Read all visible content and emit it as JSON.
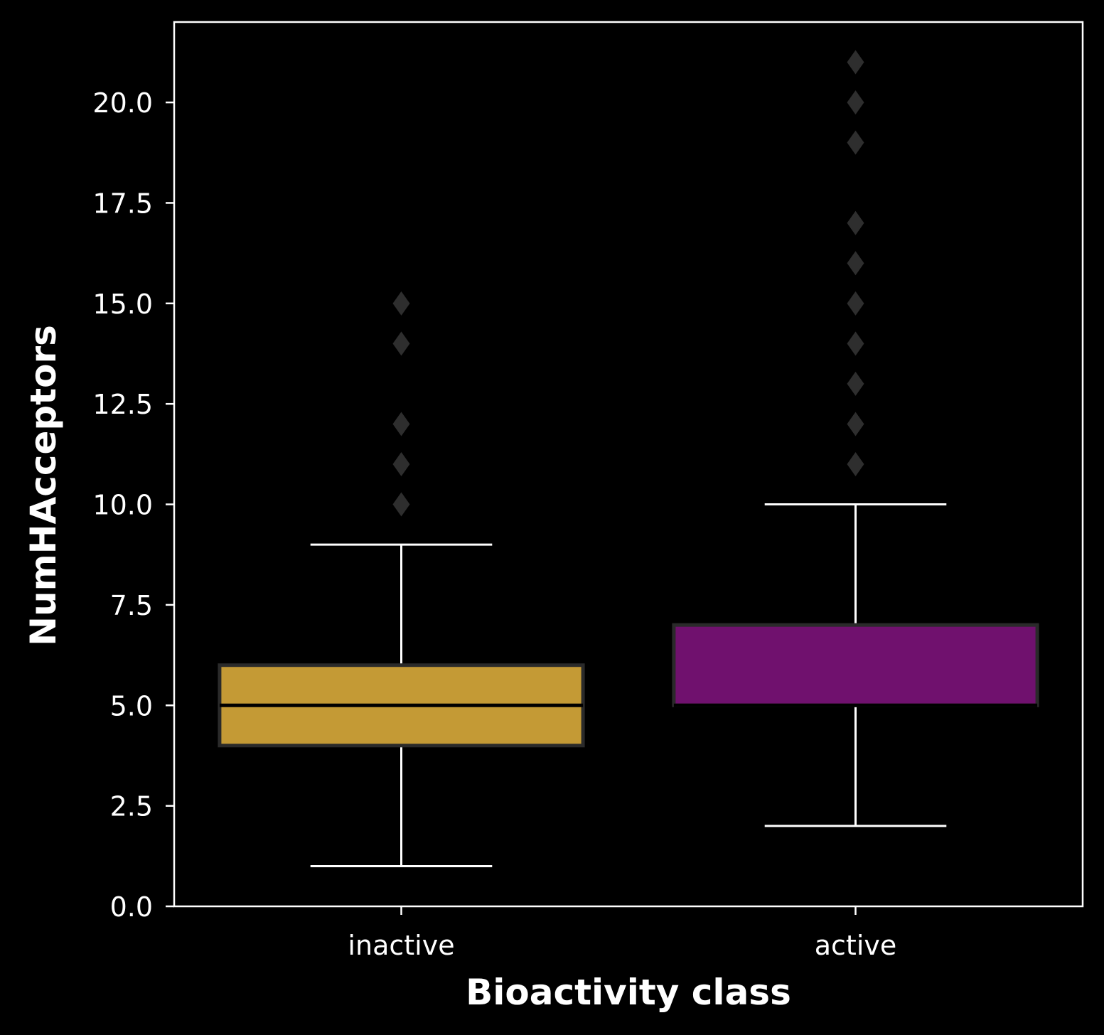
{
  "chart_data": {
    "type": "boxplot",
    "xlabel": "Bioactivity class",
    "ylabel": "NumHAcceptors",
    "ylim": [
      0,
      22
    ],
    "yticks": [
      0.0,
      2.5,
      5.0,
      7.5,
      10.0,
      12.5,
      15.0,
      17.5,
      20.0
    ],
    "ytick_labels": [
      "0.0",
      "2.5",
      "5.0",
      "7.5",
      "10.0",
      "12.5",
      "15.0",
      "17.5",
      "20.0"
    ],
    "categories": [
      "inactive",
      "active"
    ],
    "boxes": [
      {
        "category": "inactive",
        "color": "#c49a35",
        "whisker_low": 1,
        "q1": 4,
        "median": 5,
        "q3": 6,
        "whisker_high": 9,
        "outliers": [
          10,
          11,
          12,
          14,
          15
        ]
      },
      {
        "category": "active",
        "color": "#70116e",
        "whisker_low": 2,
        "q1": 5,
        "median": 5,
        "q3": 7,
        "whisker_high": 10,
        "outliers": [
          11,
          12,
          13,
          14,
          15,
          16,
          17,
          19,
          20,
          21
        ]
      }
    ],
    "grid": false,
    "colors": {
      "background": "#000000",
      "axes": "#ffffff",
      "box_edge": "#2a2a2a",
      "outlier": "#2e2e2e",
      "whisker": "#ffffff"
    }
  }
}
